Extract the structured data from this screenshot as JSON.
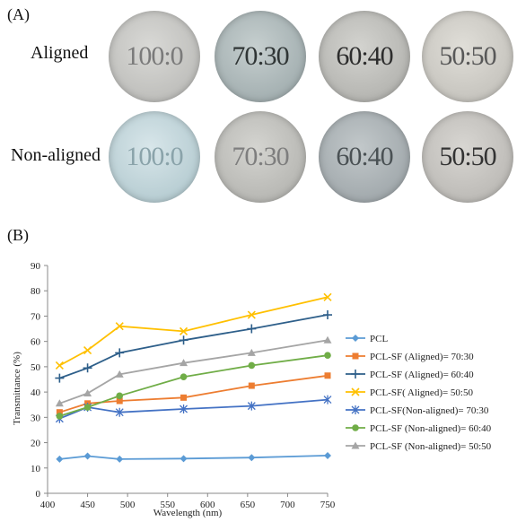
{
  "panel_a": {
    "label": "(A)",
    "rows": [
      {
        "label": "Aligned",
        "samples": [
          "100:0",
          "70:30",
          "60:40",
          "50:50"
        ]
      },
      {
        "label": "Non-aligned",
        "samples": [
          "100:0",
          "70:30",
          "60:40",
          "50:50"
        ]
      }
    ]
  },
  "panel_b": {
    "label": "(B)"
  },
  "chart_data": {
    "type": "line",
    "xlabel": "Wavelength  (nm)",
    "ylabel": "Transmittance  (%)",
    "xlim": [
      400,
      750
    ],
    "ylim": [
      0,
      90
    ],
    "xticks": [
      400,
      450,
      500,
      550,
      600,
      650,
      700,
      750
    ],
    "yticks": [
      0,
      10,
      20,
      30,
      40,
      50,
      60,
      70,
      80,
      90
    ],
    "grid": false,
    "legend_position": "right",
    "x": [
      415,
      450,
      490,
      570,
      655,
      750
    ],
    "series": [
      {
        "name": "PCL",
        "color": "#5b9bd5",
        "marker": "diamond",
        "values": [
          13.5,
          14.7,
          13.5,
          13.7,
          14.1,
          14.9
        ]
      },
      {
        "name": "PCL-SF (Aligned)= 70:30",
        "color": "#ed7d31",
        "marker": "square",
        "values": [
          32.0,
          35.5,
          36.5,
          37.8,
          42.5,
          46.5
        ]
      },
      {
        "name": "PCL-SF (Aligned)= 60:40",
        "color": "#2e5f8a",
        "marker": "plus",
        "values": [
          45.5,
          49.5,
          55.5,
          60.5,
          65.0,
          70.5
        ]
      },
      {
        "name": "PCL-SF( Aligned)= 50:50",
        "color": "#ffc000",
        "marker": "cross",
        "values": [
          50.5,
          56.5,
          66.0,
          64.0,
          70.5,
          77.5
        ]
      },
      {
        "name": "PCL-SF(Non-aligned)= 70:30",
        "color": "#4472c4",
        "marker": "star",
        "values": [
          29.5,
          34.0,
          32.0,
          33.3,
          34.5,
          37.0
        ]
      },
      {
        "name": "PCL-SF (Non-aligned)= 60:40",
        "color": "#70ad47",
        "marker": "circle",
        "values": [
          30.5,
          34.0,
          38.5,
          46.0,
          50.5,
          54.5
        ]
      },
      {
        "name": "PCL-SF (Non-aligned)= 50:50",
        "color": "#a5a5a5",
        "marker": "triangle",
        "values": [
          35.5,
          39.5,
          47.0,
          51.5,
          55.5,
          60.5
        ]
      }
    ]
  }
}
